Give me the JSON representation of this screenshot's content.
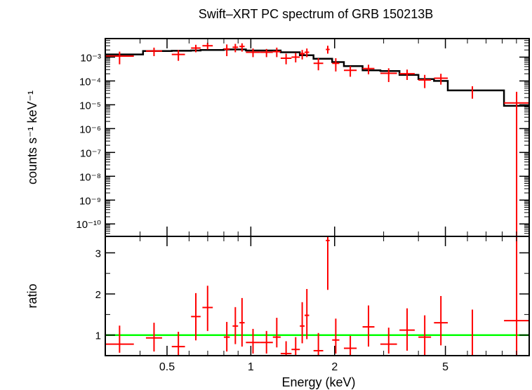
{
  "chart_data": {
    "type": "scatter",
    "title": "Swift–XRT PC spectrum of GRB 150213B",
    "xlabel": "Energy (keV)",
    "x_scale": "log",
    "xlim": [
      0.3,
      10
    ],
    "x_ticks": [
      {
        "value": 0.5,
        "label": "0.5"
      },
      {
        "value": 1,
        "label": "1"
      },
      {
        "value": 2,
        "label": "2"
      },
      {
        "value": 5,
        "label": "5"
      }
    ],
    "panels": [
      {
        "name": "spectrum",
        "ylabel": "counts s⁻¹ keV⁻¹",
        "y_scale": "log",
        "ylim": [
          3e-11,
          0.006
        ],
        "y_ticks": [
          {
            "value": 0.001,
            "label": "10⁻³"
          },
          {
            "value": 0.0001,
            "label": "10⁻⁴"
          },
          {
            "value": 1e-05,
            "label": "10⁻⁵"
          },
          {
            "value": 1e-06,
            "label": "10⁻⁶"
          },
          {
            "value": 1e-07,
            "label": "10⁻⁷"
          },
          {
            "value": 1e-08,
            "label": "10⁻⁸"
          },
          {
            "value": 1e-09,
            "label": "10⁻⁹"
          },
          {
            "value": 1e-10,
            "label": "10⁻¹⁰"
          }
        ],
        "data": {
          "color": "#ff0000",
          "points": [
            {
              "x_lo": 0.3,
              "x_hi": 0.38,
              "y": 0.0011,
              "y_lo": 0.0005,
              "y_hi": 0.0017
            },
            {
              "x_lo": 0.42,
              "x_hi": 0.48,
              "y": 0.0018,
              "y_lo": 0.0011,
              "y_hi": 0.0025
            },
            {
              "x_lo": 0.52,
              "x_hi": 0.58,
              "y": 0.0013,
              "y_lo": 0.0007,
              "y_hi": 0.002
            },
            {
              "x_lo": 0.61,
              "x_hi": 0.66,
              "y": 0.0024,
              "y_lo": 0.0016,
              "y_hi": 0.0033
            },
            {
              "x_lo": 0.67,
              "x_hi": 0.73,
              "y": 0.003,
              "y_lo": 0.0021,
              "y_hi": 0.004
            },
            {
              "x_lo": 0.8,
              "x_hi": 0.84,
              "y": 0.0022,
              "y_lo": 0.0011,
              "y_hi": 0.0034
            },
            {
              "x_lo": 0.86,
              "x_hi": 0.9,
              "y": 0.0026,
              "y_lo": 0.0016,
              "y_hi": 0.0036
            },
            {
              "x_lo": 0.91,
              "x_hi": 0.95,
              "y": 0.0028,
              "y_lo": 0.0017,
              "y_hi": 0.0038
            },
            {
              "x_lo": 0.96,
              "x_hi": 1.08,
              "y": 0.0016,
              "y_lo": 0.001,
              "y_hi": 0.0023
            },
            {
              "x_lo": 1.08,
              "x_hi": 1.2,
              "y": 0.0016,
              "y_lo": 0.001,
              "y_hi": 0.0022
            },
            {
              "x_lo": 1.2,
              "x_hi": 1.28,
              "y": 0.0017,
              "y_lo": 0.001,
              "y_hi": 0.0025
            },
            {
              "x_lo": 1.28,
              "x_hi": 1.4,
              "y": 0.0009,
              "y_lo": 0.0005,
              "y_hi": 0.0014
            },
            {
              "x_lo": 1.4,
              "x_hi": 1.5,
              "y": 0.001,
              "y_lo": 0.0006,
              "y_hi": 0.0015
            },
            {
              "x_lo": 1.5,
              "x_hi": 1.56,
              "y": 0.0014,
              "y_lo": 0.0008,
              "y_hi": 0.002
            },
            {
              "x_lo": 1.56,
              "x_hi": 1.62,
              "y": 0.0016,
              "y_lo": 0.001,
              "y_hi": 0.0023
            },
            {
              "x_lo": 1.68,
              "x_hi": 1.82,
              "y": 0.00055,
              "y_lo": 0.00028,
              "y_hi": 0.0009
            },
            {
              "x_lo": 1.86,
              "x_hi": 1.92,
              "y": 0.0021,
              "y_lo": 0.0014,
              "y_hi": 0.003
            },
            {
              "x_lo": 1.96,
              "x_hi": 2.08,
              "y": 0.00055,
              "y_lo": 0.00025,
              "y_hi": 0.0009
            },
            {
              "x_lo": 2.16,
              "x_hi": 2.4,
              "y": 0.00028,
              "y_lo": 0.00015,
              "y_hi": 0.00042
            },
            {
              "x_lo": 2.52,
              "x_hi": 2.78,
              "y": 0.00033,
              "y_lo": 0.00019,
              "y_hi": 0.00048
            },
            {
              "x_lo": 2.92,
              "x_hi": 3.35,
              "y": 0.00021,
              "y_lo": 9e-05,
              "y_hi": 0.00034
            },
            {
              "x_lo": 3.42,
              "x_hi": 3.88,
              "y": 0.0002,
              "y_lo": 0.00011,
              "y_hi": 0.0003
            },
            {
              "x_lo": 4.0,
              "x_hi": 4.44,
              "y": 0.00011,
              "y_lo": 5e-05,
              "y_hi": 0.00018
            },
            {
              "x_lo": 4.55,
              "x_hi": 5.1,
              "y": 0.00013,
              "y_lo": 7e-05,
              "y_hi": 0.0002
            },
            {
              "x_lo": 6.25,
              "x_hi": 6.25,
              "y": 3.8e-05,
              "y_lo": 1.8e-05,
              "y_hi": 6e-05
            },
            {
              "x_lo": 8.12,
              "x_hi": 10.0,
              "y": 1.2e-05,
              "y_lo": 3e-11,
              "y_hi": 3.5e-05
            }
          ]
        },
        "model": {
          "color": "#000000",
          "steps": [
            {
              "x_lo": 0.3,
              "x_hi": 0.41,
              "y": 0.0013
            },
            {
              "x_lo": 0.41,
              "x_hi": 0.52,
              "y": 0.0018
            },
            {
              "x_lo": 0.52,
              "x_hi": 0.61,
              "y": 0.00185
            },
            {
              "x_lo": 0.61,
              "x_hi": 0.66,
              "y": 0.0019
            },
            {
              "x_lo": 0.66,
              "x_hi": 0.8,
              "y": 0.002
            },
            {
              "x_lo": 0.8,
              "x_hi": 0.96,
              "y": 0.0021
            },
            {
              "x_lo": 0.96,
              "x_hi": 1.28,
              "y": 0.0019
            },
            {
              "x_lo": 1.28,
              "x_hi": 1.5,
              "y": 0.0016
            },
            {
              "x_lo": 1.5,
              "x_hi": 1.68,
              "y": 0.0012
            },
            {
              "x_lo": 1.68,
              "x_hi": 1.96,
              "y": 0.00085
            },
            {
              "x_lo": 1.96,
              "x_hi": 2.16,
              "y": 0.00062
            },
            {
              "x_lo": 2.16,
              "x_hi": 2.52,
              "y": 0.00042
            },
            {
              "x_lo": 2.52,
              "x_hi": 2.92,
              "y": 0.00028
            },
            {
              "x_lo": 2.92,
              "x_hi": 3.42,
              "y": 0.00026
            },
            {
              "x_lo": 3.42,
              "x_hi": 4.0,
              "y": 0.00018
            },
            {
              "x_lo": 4.0,
              "x_hi": 4.55,
              "y": 0.00012
            },
            {
              "x_lo": 4.55,
              "x_hi": 5.1,
              "y": 0.0001
            },
            {
              "x_lo": 5.1,
              "x_hi": 8.12,
              "y": 4e-05
            },
            {
              "x_lo": 8.12,
              "x_hi": 10.0,
              "y": 9e-06
            }
          ]
        }
      },
      {
        "name": "ratio",
        "ylabel": "ratio",
        "y_scale": "linear",
        "ylim": [
          0.5,
          3.4
        ],
        "y_ticks": [
          {
            "value": 1,
            "label": "1"
          },
          {
            "value": 2,
            "label": "2"
          },
          {
            "value": 3,
            "label": "3"
          }
        ],
        "reference_line": {
          "y": 1,
          "color": "#00ff00"
        },
        "data": {
          "color": "#ff0000",
          "points": [
            {
              "x_lo": 0.3,
              "x_hi": 0.38,
              "y": 0.78,
              "y_lo": 0.57,
              "y_hi": 1.23
            },
            {
              "x_lo": 0.42,
              "x_hi": 0.48,
              "y": 0.93,
              "y_lo": 0.6,
              "y_hi": 1.3
            },
            {
              "x_lo": 0.52,
              "x_hi": 0.58,
              "y": 0.72,
              "y_lo": 0.5,
              "y_hi": 1.08
            },
            {
              "x_lo": 0.61,
              "x_hi": 0.66,
              "y": 1.45,
              "y_lo": 0.87,
              "y_hi": 2.02
            },
            {
              "x_lo": 0.67,
              "x_hi": 0.73,
              "y": 1.67,
              "y_lo": 1.1,
              "y_hi": 2.2
            },
            {
              "x_lo": 0.8,
              "x_hi": 0.84,
              "y": 0.95,
              "y_lo": 0.6,
              "y_hi": 1.32
            },
            {
              "x_lo": 0.86,
              "x_hi": 0.9,
              "y": 1.22,
              "y_lo": 0.78,
              "y_hi": 1.68
            },
            {
              "x_lo": 0.91,
              "x_hi": 0.95,
              "y": 1.3,
              "y_lo": 0.72,
              "y_hi": 1.9
            },
            {
              "x_lo": 0.96,
              "x_hi": 1.08,
              "y": 0.82,
              "y_lo": 0.55,
              "y_hi": 1.15
            },
            {
              "x_lo": 1.08,
              "x_hi": 1.2,
              "y": 0.82,
              "y_lo": 0.55,
              "y_hi": 1.1
            },
            {
              "x_lo": 1.2,
              "x_hi": 1.28,
              "y": 0.95,
              "y_lo": 0.7,
              "y_hi": 1.42
            },
            {
              "x_lo": 1.28,
              "x_hi": 1.4,
              "y": 0.55,
              "y_lo": 0.5,
              "y_hi": 0.85
            },
            {
              "x_lo": 1.4,
              "x_hi": 1.5,
              "y": 0.65,
              "y_lo": 0.5,
              "y_hi": 0.95
            },
            {
              "x_lo": 1.5,
              "x_hi": 1.56,
              "y": 1.22,
              "y_lo": 0.8,
              "y_hi": 1.8
            },
            {
              "x_lo": 1.56,
              "x_hi": 1.62,
              "y": 1.48,
              "y_lo": 0.9,
              "y_hi": 2.12
            },
            {
              "x_lo": 1.68,
              "x_hi": 1.82,
              "y": 0.62,
              "y_lo": 0.5,
              "y_hi": 1.05
            },
            {
              "x_lo": 1.86,
              "x_hi": 1.92,
              "y": 3.3,
              "y_lo": 2.1,
              "y_hi": 3.4
            },
            {
              "x_lo": 1.96,
              "x_hi": 2.08,
              "y": 0.88,
              "y_lo": 0.55,
              "y_hi": 1.4
            },
            {
              "x_lo": 2.16,
              "x_hi": 2.4,
              "y": 0.68,
              "y_lo": 0.5,
              "y_hi": 0.98
            },
            {
              "x_lo": 2.52,
              "x_hi": 2.78,
              "y": 1.2,
              "y_lo": 0.72,
              "y_hi": 1.72
            },
            {
              "x_lo": 2.92,
              "x_hi": 3.35,
              "y": 0.78,
              "y_lo": 0.55,
              "y_hi": 1.18
            },
            {
              "x_lo": 3.42,
              "x_hi": 3.88,
              "y": 1.12,
              "y_lo": 0.62,
              "y_hi": 1.65
            },
            {
              "x_lo": 4.0,
              "x_hi": 4.44,
              "y": 0.95,
              "y_lo": 0.5,
              "y_hi": 1.48
            },
            {
              "x_lo": 4.55,
              "x_hi": 5.1,
              "y": 1.3,
              "y_lo": 0.75,
              "y_hi": 1.95
            },
            {
              "x_lo": 6.25,
              "x_hi": 6.25,
              "y": 1.0,
              "y_lo": 0.5,
              "y_hi": 1.62
            },
            {
              "x_lo": 8.12,
              "x_hi": 10.0,
              "y": 1.35,
              "y_lo": 0.5,
              "y_hi": 3.4
            }
          ]
        }
      }
    ]
  }
}
